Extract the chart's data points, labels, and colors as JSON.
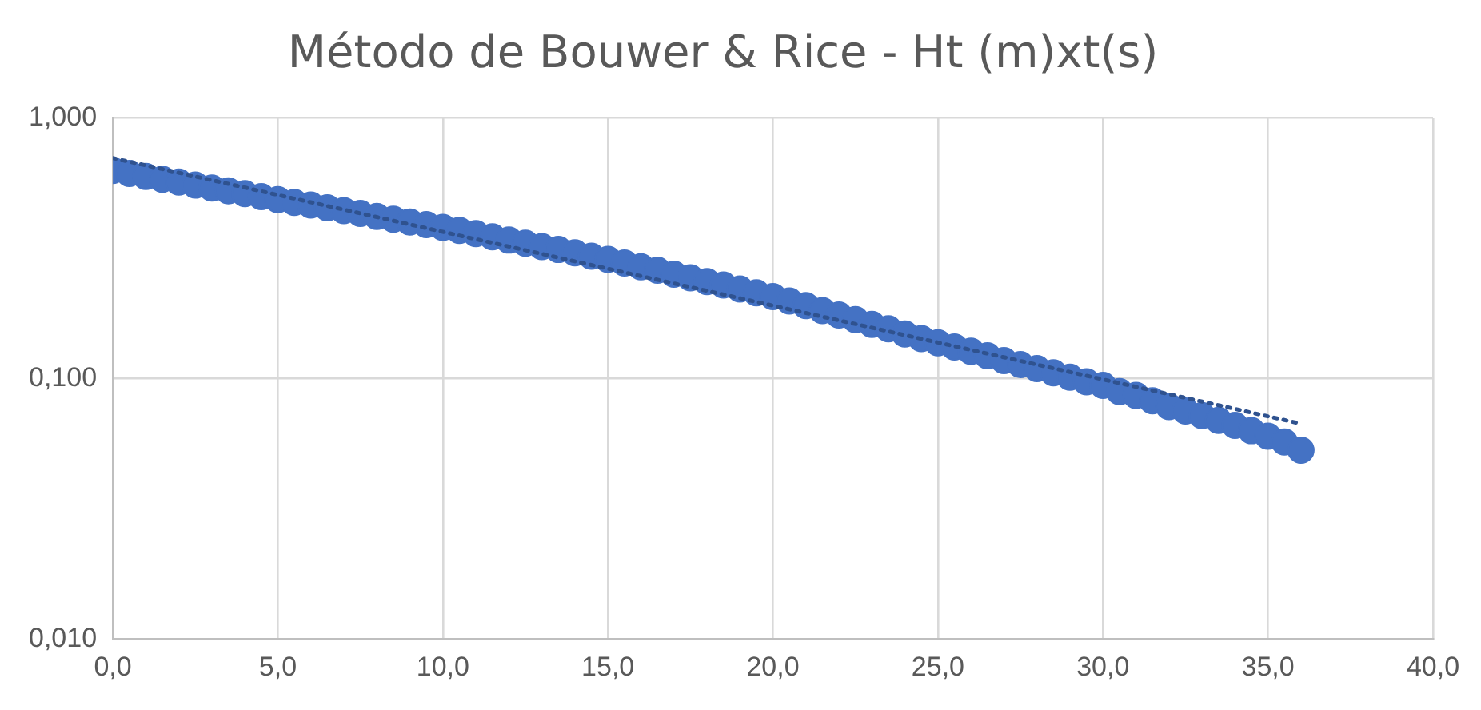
{
  "chart_data": {
    "type": "scatter",
    "title": "Método de Bouwer & Rice - Ht (m)xt(s)",
    "x": [
      0,
      0.5,
      1,
      1.5,
      2,
      2.5,
      3,
      3.5,
      4,
      4.5,
      5,
      5.5,
      6,
      6.5,
      7,
      7.5,
      8,
      8.5,
      9,
      9.5,
      10,
      10.5,
      11,
      11.5,
      12,
      12.5,
      13,
      13.5,
      14,
      14.5,
      15,
      15.5,
      16,
      16.5,
      17,
      17.5,
      18,
      18.5,
      19,
      19.5,
      20,
      20.5,
      21,
      21.5,
      22,
      22.5,
      23,
      23.5,
      24,
      24.5,
      25,
      25.5,
      26,
      26.5,
      27,
      27.5,
      28,
      28.5,
      29,
      29.5,
      30,
      30.5,
      31,
      31.5,
      32,
      32.5,
      33,
      33.5,
      34,
      34.5,
      35,
      35.5,
      36
    ],
    "series": [
      {
        "type": "scatter",
        "color": "#4472c4",
        "marker": "circle",
        "values": [
          0.627,
          0.611,
          0.595,
          0.58,
          0.566,
          0.551,
          0.537,
          0.524,
          0.511,
          0.498,
          0.485,
          0.473,
          0.462,
          0.451,
          0.44,
          0.429,
          0.418,
          0.408,
          0.398,
          0.389,
          0.379,
          0.369,
          0.359,
          0.349,
          0.339,
          0.33,
          0.32,
          0.312,
          0.303,
          0.294,
          0.286,
          0.277,
          0.268,
          0.26,
          0.251,
          0.243,
          0.235,
          0.228,
          0.22,
          0.213,
          0.206,
          0.198,
          0.19,
          0.182,
          0.175,
          0.168,
          0.161,
          0.155,
          0.148,
          0.142,
          0.137,
          0.132,
          0.127,
          0.122,
          0.117,
          0.113,
          0.109,
          0.105,
          0.101,
          0.097,
          0.094,
          0.089,
          0.086,
          0.082,
          0.078,
          0.075,
          0.072,
          0.069,
          0.066,
          0.063,
          0.06,
          0.057,
          0.053
        ]
      },
      {
        "type": "line",
        "color": "#2f528f",
        "marker": "none",
        "line_style": "dotted",
        "x": [
          0,
          36
        ],
        "values": [
          0.7,
          0.067
        ]
      }
    ],
    "log": "y",
    "grid": true,
    "xlim": [
      0,
      40
    ],
    "xticks": [
      {
        "value": 0,
        "label": "0,0"
      },
      {
        "value": 5,
        "label": "5,0"
      },
      {
        "value": 10,
        "label": "10,0"
      },
      {
        "value": 15,
        "label": "15,0"
      },
      {
        "value": 20,
        "label": "20,0"
      },
      {
        "value": 25,
        "label": "25,0"
      },
      {
        "value": 30,
        "label": "30,0"
      },
      {
        "value": 35,
        "label": "35,0"
      },
      {
        "value": 40,
        "label": "40,0"
      }
    ],
    "ylim": [
      0.01,
      1
    ],
    "yticks": [
      {
        "value": 0.01,
        "label": "0,010"
      },
      {
        "value": 0.1,
        "label": "0,100"
      },
      {
        "value": 1,
        "label": "1,000"
      }
    ]
  }
}
